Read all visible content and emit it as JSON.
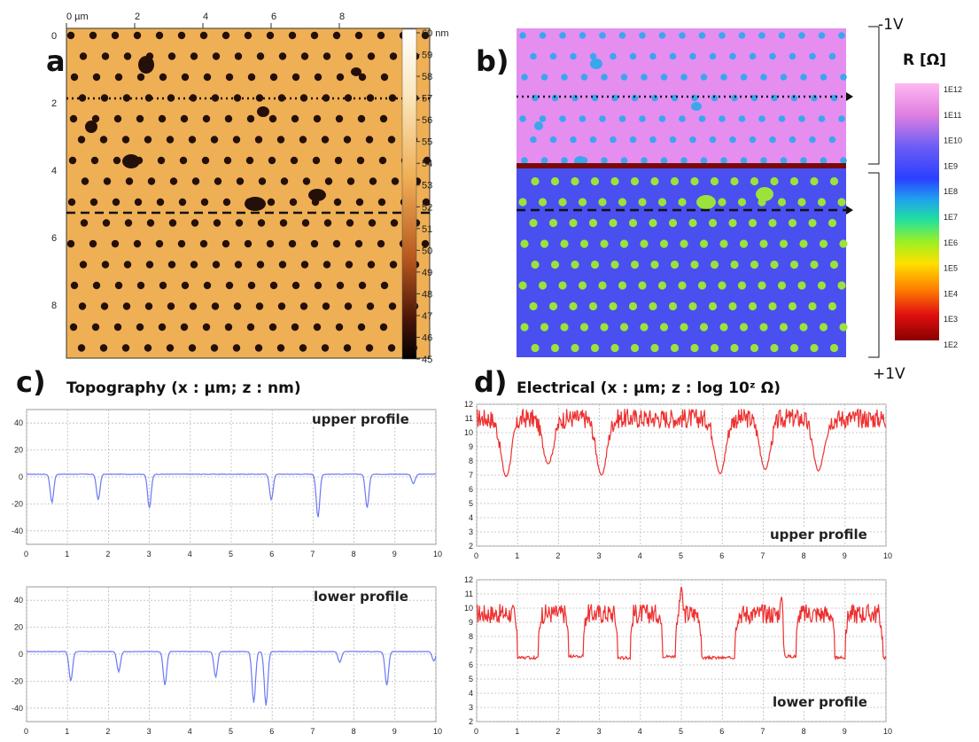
{
  "panels": {
    "a": {
      "letter": "a)"
    },
    "b": {
      "letter": "b)"
    },
    "c": {
      "letter": "c)",
      "title": "Topography  (x : µm; z : nm)"
    },
    "d": {
      "letter": "d)",
      "title": "Electrical (x : µm; z : log 10ᶻ Ω)"
    }
  },
  "afm_axes": {
    "x_ticks": [
      "0 µm",
      "2",
      "4",
      "6",
      "8"
    ],
    "y_ticks": [
      "0",
      "2",
      "4",
      "6",
      "8"
    ]
  },
  "topo_colorbar": {
    "labels": [
      "60 nm",
      "59",
      "58",
      "57",
      "56",
      "55",
      "54",
      "53",
      "52",
      "51",
      "50",
      "49",
      "48",
      "47",
      "46",
      "45"
    ]
  },
  "resistance_colorbar": {
    "title": "R [Ω]",
    "labels": [
      "1E12",
      "1E11",
      "1E10",
      "1E9",
      "1E8",
      "1E7",
      "1E6",
      "1E5",
      "1E4",
      "1E3",
      "1E2"
    ]
  },
  "voltage": {
    "top": "-1V",
    "bottom": "+1V"
  },
  "profile_labels": {
    "c_upper": "upper  profile",
    "c_lower": "lower profile",
    "d_upper": "upper  profile",
    "d_lower": "lower  profile"
  },
  "colors": {
    "topo_background": "#efaf55",
    "topo_dot": "#241008",
    "topo_line": "#6b78f5",
    "elec_line": "#ee3030",
    "elec_top_bg": "#e58ef0",
    "elec_bottom_bg": "#4a4ff0",
    "elec_top_dot": "#3aa6ee",
    "elec_bottom_dot": "#9be23a",
    "divider": "#7a0a0a"
  },
  "chart_data": [
    {
      "type": "line",
      "title": "Topography  (x : µm; z : nm)",
      "subtitle": "upper  profile",
      "xlim": [
        0,
        10
      ],
      "ylim": [
        -50,
        50
      ],
      "x_ticks": [
        0,
        1,
        2,
        3,
        4,
        5,
        6,
        7,
        8,
        9,
        10
      ],
      "y_ticks": [
        40,
        20,
        0,
        -20,
        -40
      ],
      "grid": true,
      "baseline": 2,
      "dips": [
        [
          0.62,
          -19
        ],
        [
          1.75,
          -17
        ],
        [
          3.0,
          -23
        ],
        [
          5.98,
          -17
        ],
        [
          7.12,
          -30
        ],
        [
          8.32,
          -23
        ],
        [
          9.45,
          -5
        ]
      ]
    },
    {
      "type": "line",
      "title": "Topography  (x : µm; z : nm)",
      "subtitle": "lower profile",
      "xlim": [
        0,
        10
      ],
      "ylim": [
        -50,
        50
      ],
      "x_ticks": [
        0,
        1,
        2,
        3,
        4,
        5,
        6,
        7,
        8,
        9,
        10
      ],
      "y_ticks": [
        40,
        20,
        0,
        -20,
        -40
      ],
      "grid": true,
      "baseline": 2,
      "dips": [
        [
          1.08,
          -20
        ],
        [
          2.25,
          -13
        ],
        [
          3.38,
          -23
        ],
        [
          4.62,
          -17
        ],
        [
          5.55,
          -36
        ],
        [
          5.85,
          -38
        ],
        [
          7.65,
          -6
        ],
        [
          8.8,
          -23
        ],
        [
          9.95,
          -5
        ]
      ]
    },
    {
      "type": "line",
      "title": "Electrical (x : µm; z : log 10ᶻ Ω)",
      "subtitle": "upper  profile",
      "xlim": [
        0,
        10
      ],
      "ylim": [
        2,
        12
      ],
      "x_ticks": [
        0,
        1,
        2,
        3,
        4,
        5,
        6,
        7,
        8,
        9,
        10
      ],
      "y_ticks": [
        12,
        11,
        10,
        9,
        8,
        7,
        6,
        5,
        4,
        3,
        2
      ],
      "grid": true,
      "baseline": 11.0,
      "dips": [
        [
          0.72,
          6.9
        ],
        [
          1.75,
          7.8
        ],
        [
          3.05,
          7.0
        ],
        [
          5.95,
          7.1
        ],
        [
          7.05,
          7.4
        ],
        [
          8.35,
          7.3
        ]
      ]
    },
    {
      "type": "line",
      "title": "Electrical (x : µm; z : log 10ᶻ Ω)",
      "subtitle": "lower  profile",
      "xlim": [
        0,
        10
      ],
      "ylim": [
        2,
        12
      ],
      "x_ticks": [
        0,
        1,
        2,
        3,
        4,
        5,
        6,
        7,
        8,
        9,
        10
      ],
      "y_ticks": [
        12,
        11,
        10,
        9,
        8,
        7,
        6,
        5,
        4,
        3,
        2
      ],
      "grid": true,
      "baseline": 9.6,
      "plateaus": [
        [
          1.0,
          1.5,
          6.5
        ],
        [
          2.25,
          2.6,
          6.6
        ],
        [
          3.45,
          3.75,
          6.5
        ],
        [
          4.55,
          4.85,
          6.6
        ],
        [
          5.5,
          6.3,
          6.5
        ],
        [
          7.5,
          7.8,
          6.6
        ],
        [
          8.75,
          9.0,
          6.5
        ],
        [
          9.92,
          10.0,
          6.5
        ]
      ],
      "peaks": [
        [
          5.0,
          11.5
        ],
        [
          7.45,
          10.8
        ]
      ]
    }
  ]
}
